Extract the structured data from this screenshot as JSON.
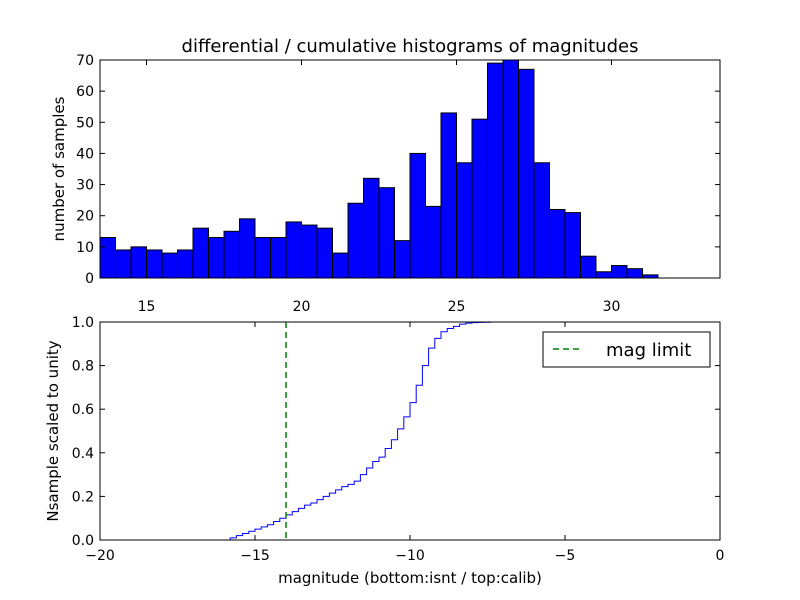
{
  "chart_data": [
    {
      "type": "bar",
      "title": "differential / cumulative histograms of magnitudes",
      "xlabel": "",
      "ylabel": "number of samples",
      "xlim": [
        13.5,
        33.5
      ],
      "ylim": [
        0,
        70
      ],
      "xticks": [
        15,
        20,
        25,
        30
      ],
      "xtick_labels": [
        "15",
        "20",
        "25",
        "30"
      ],
      "yticks": [
        0,
        10,
        20,
        30,
        40,
        50,
        60,
        70
      ],
      "ytick_labels": [
        "0",
        "10",
        "20",
        "30",
        "40",
        "50",
        "60",
        "70"
      ],
      "bin_start": 13.5,
      "bin_width": 0.5,
      "values": [
        13,
        9,
        10,
        9,
        8,
        9,
        16,
        13,
        15,
        19,
        13,
        13,
        18,
        17,
        16,
        8,
        24,
        32,
        29,
        12,
        40,
        23,
        53,
        37,
        51,
        69,
        70,
        67,
        37,
        22,
        21,
        7,
        2,
        4,
        3,
        1,
        0
      ],
      "bar_color": "#0000ff"
    },
    {
      "type": "line",
      "title": "",
      "xlabel": "magnitude (bottom:isnt / top:calib)",
      "ylabel": "Nsample scaled to unity",
      "xlim": [
        -20,
        0
      ],
      "ylim": [
        0,
        1
      ],
      "xticks": [
        -20,
        -15,
        -10,
        -5,
        0
      ],
      "xtick_labels": [
        "−20",
        "−15",
        "−10",
        "−5",
        "0"
      ],
      "yticks": [
        0,
        0.2,
        0.4,
        0.6,
        0.8,
        1.0
      ],
      "ytick_labels": [
        "0.0",
        "0.2",
        "0.4",
        "0.6",
        "0.8",
        "1.0"
      ],
      "step_x": [
        -20,
        -15.8,
        -15.6,
        -15.4,
        -15.2,
        -15.0,
        -14.8,
        -14.6,
        -14.4,
        -14.2,
        -14.0,
        -13.8,
        -13.6,
        -13.4,
        -13.2,
        -13.0,
        -12.8,
        -12.6,
        -12.4,
        -12.2,
        -12.0,
        -11.8,
        -11.6,
        -11.4,
        -11.2,
        -11.0,
        -10.8,
        -10.6,
        -10.4,
        -10.2,
        -10.0,
        -9.8,
        -9.6,
        -9.4,
        -9.2,
        -9.0,
        -8.8,
        -8.6,
        -8.4,
        -8.2,
        -8.0,
        -7.8,
        -7.6,
        -7.4,
        -7.2,
        0
      ],
      "step_y": [
        0.0,
        0.01,
        0.02,
        0.03,
        0.04,
        0.05,
        0.06,
        0.07,
        0.085,
        0.1,
        0.115,
        0.13,
        0.145,
        0.16,
        0.17,
        0.185,
        0.2,
        0.215,
        0.23,
        0.245,
        0.255,
        0.27,
        0.3,
        0.33,
        0.36,
        0.38,
        0.42,
        0.46,
        0.51,
        0.565,
        0.63,
        0.71,
        0.8,
        0.88,
        0.925,
        0.955,
        0.97,
        0.98,
        0.99,
        0.995,
        0.997,
        0.998,
        0.999,
        1.0,
        1.0,
        1.0
      ],
      "line_color": "#0000ff",
      "mag_limit_x": -14,
      "mag_limit_color": "#008000",
      "legend": {
        "label": "mag limit",
        "placement": "top-right"
      }
    }
  ]
}
